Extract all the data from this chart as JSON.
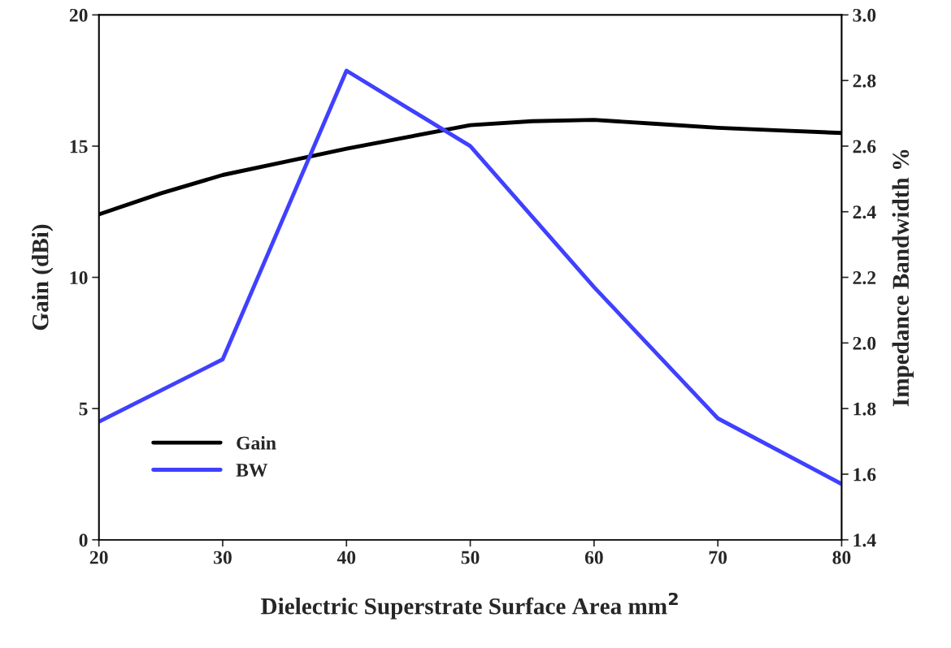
{
  "chart_data": {
    "type": "line",
    "xlabel": "Dielectric Superstrate Surface Area mm$^{2}$",
    "ylabel": "Gain (dBi)",
    "y2label": "Impedance Bandwidth %",
    "x": [
      20,
      25,
      30,
      35,
      40,
      45,
      50,
      55,
      60,
      65,
      70,
      75,
      80
    ],
    "series": [
      {
        "name": "Gain",
        "color": "#000000",
        "values": [
          12.4,
          13.2,
          13.9,
          14.4,
          14.9,
          15.35,
          15.8,
          15.95,
          16.0,
          15.85,
          15.7,
          15.6,
          15.5
        ]
      },
      {
        "name": "BW",
        "color": "#4040ff",
        "axis": "y2",
        "x": [
          20,
          30,
          40,
          50,
          60,
          70,
          80
        ],
        "values": [
          1.76,
          1.95,
          2.83,
          2.6,
          2.17,
          1.77,
          1.57
        ]
      }
    ],
    "xlim": [
      20,
      80
    ],
    "xticks": [
      20,
      30,
      40,
      50,
      60,
      70,
      80
    ],
    "ylim": [
      0,
      20
    ],
    "yticks": [
      0,
      5,
      10,
      15,
      20
    ],
    "y2lim": [
      1.4,
      3.0
    ],
    "y2ticks": [
      1.4,
      1.6,
      1.8,
      {
        "value": 2,
        "label": "2.0"
      },
      2.2,
      2.4,
      2.6,
      2.8,
      {
        "value": 3,
        "label": "3.0"
      }
    ],
    "legend": "lower left",
    "grid": false,
    "marker": "none",
    "line_style": "solid"
  }
}
